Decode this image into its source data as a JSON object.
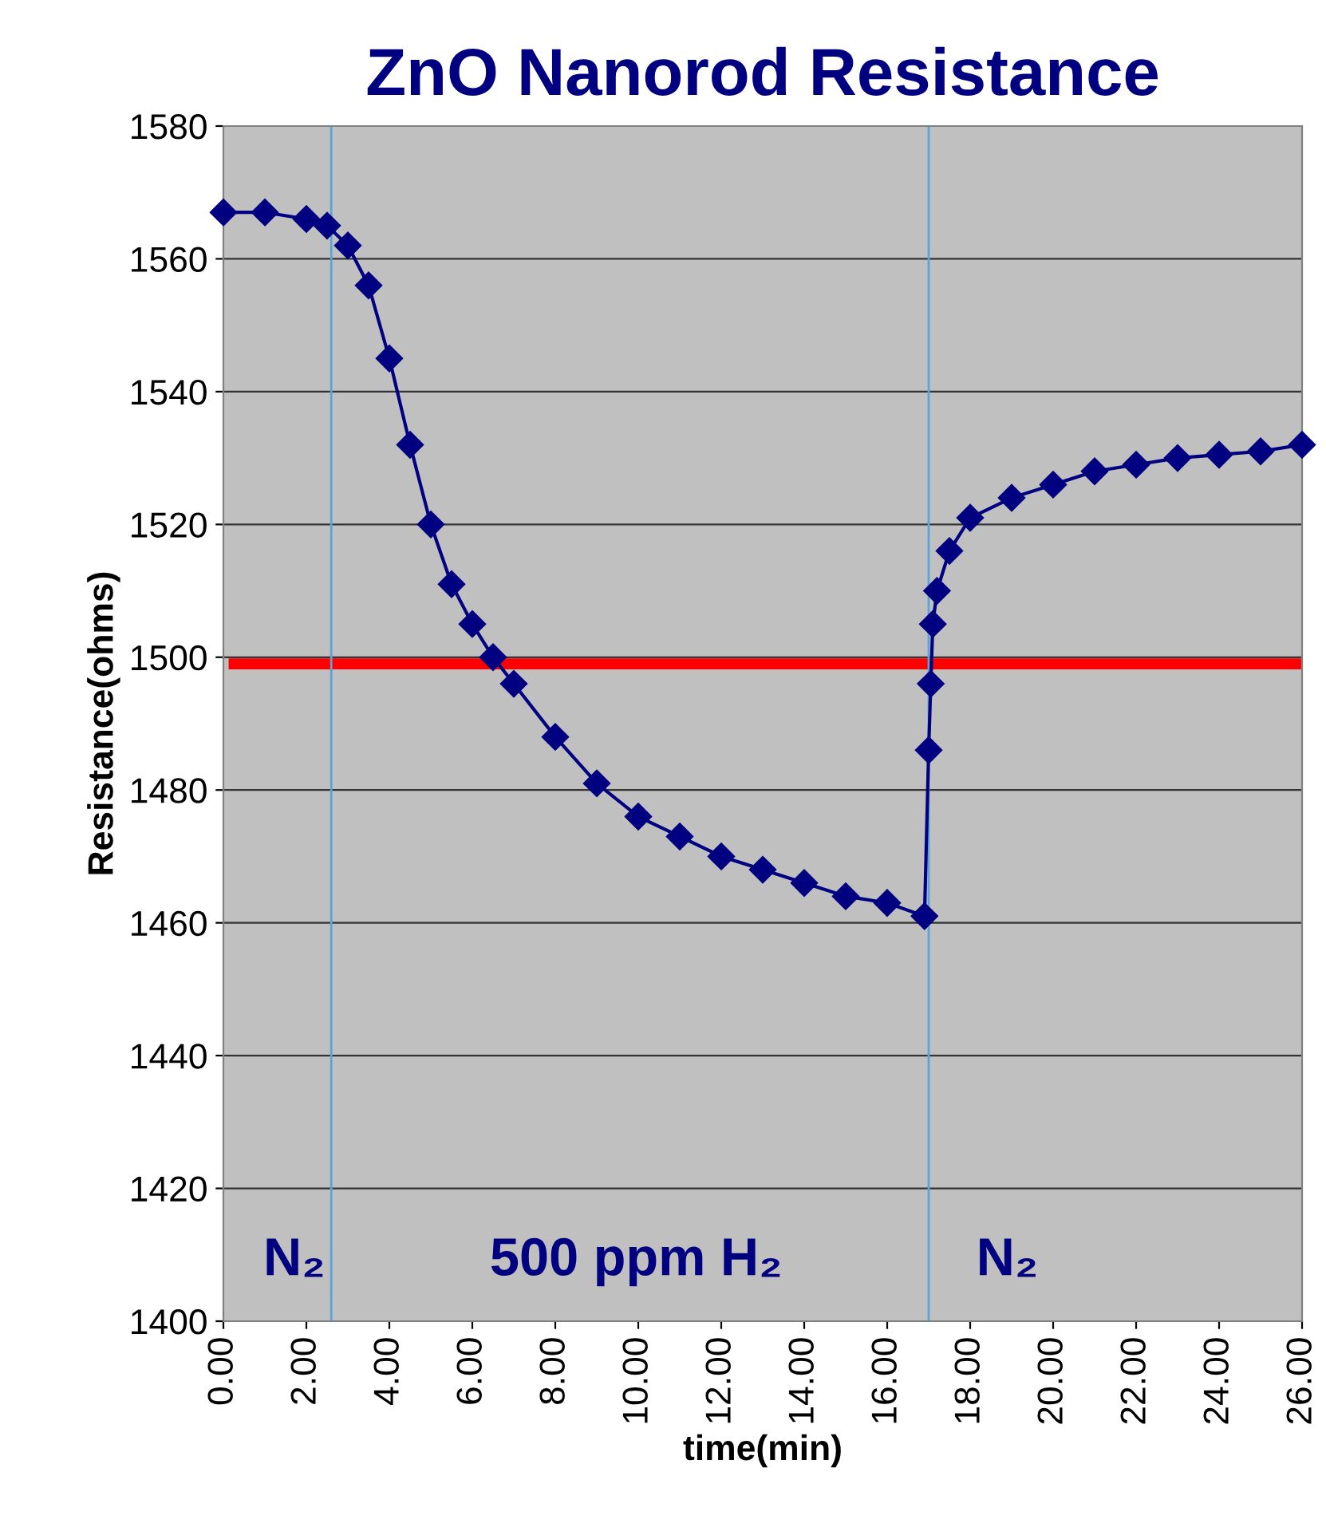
{
  "chart_data": {
    "type": "line",
    "title": "ZnO Nanorod Resistance",
    "xlabel": "time(min)",
    "ylabel": "Resistance(ohms)",
    "xlim": [
      0,
      26
    ],
    "xticks": [
      {
        "value": 0,
        "label": "0.00"
      },
      {
        "value": 2,
        "label": "2.00"
      },
      {
        "value": 4,
        "label": "4.00"
      },
      {
        "value": 6,
        "label": "6.00"
      },
      {
        "value": 8,
        "label": "8.00"
      },
      {
        "value": 10,
        "label": "10.00"
      },
      {
        "value": 12,
        "label": "12.00"
      },
      {
        "value": 14,
        "label": "14.00"
      },
      {
        "value": 16,
        "label": "16.00"
      },
      {
        "value": 18,
        "label": "18.00"
      },
      {
        "value": 20,
        "label": "20.00"
      },
      {
        "value": 22,
        "label": "22.00"
      },
      {
        "value": 24,
        "label": "24.00"
      },
      {
        "value": 26,
        "label": "26.00"
      }
    ],
    "ylim": [
      1400,
      1580
    ],
    "yticks": [
      1400,
      1420,
      1440,
      1460,
      1480,
      1500,
      1520,
      1540,
      1560,
      1580
    ],
    "grid": "y",
    "legend": false,
    "marker": "diamond",
    "line_style": "solid",
    "series": [
      {
        "color": "#000080",
        "x": [
          0,
          1,
          2,
          2.5,
          3,
          3.5,
          4,
          4.5,
          5,
          5.5,
          6,
          6.5,
          7,
          8,
          9,
          10,
          11,
          12,
          13,
          14,
          15,
          16,
          16.9,
          17.0,
          17.05,
          17.1,
          17.2,
          17.5,
          18,
          19,
          20,
          21,
          22,
          23,
          24,
          25,
          26
        ],
        "values": [
          1567,
          1567,
          1566,
          1565,
          1562,
          1556,
          1545,
          1532,
          1520,
          1511,
          1505,
          1500,
          1496,
          1488,
          1481,
          1476,
          1473,
          1470,
          1468,
          1466,
          1464,
          1463,
          1461,
          1486,
          1496,
          1505,
          1510,
          1516,
          1521,
          1524,
          1526,
          1528,
          1529,
          1530,
          1530.5,
          1531,
          1532
        ]
      }
    ],
    "ref_lines": [
      {
        "axis": "y",
        "value": 1499,
        "color": "#ff0000"
      },
      {
        "axis": "x",
        "value": 2.6,
        "color": "#5ba3d9"
      },
      {
        "axis": "x",
        "value": 17.0,
        "color": "#5ba3d9"
      }
    ],
    "annotations": [
      "N₂",
      "500 ppm H₂",
      "N₂"
    ]
  }
}
